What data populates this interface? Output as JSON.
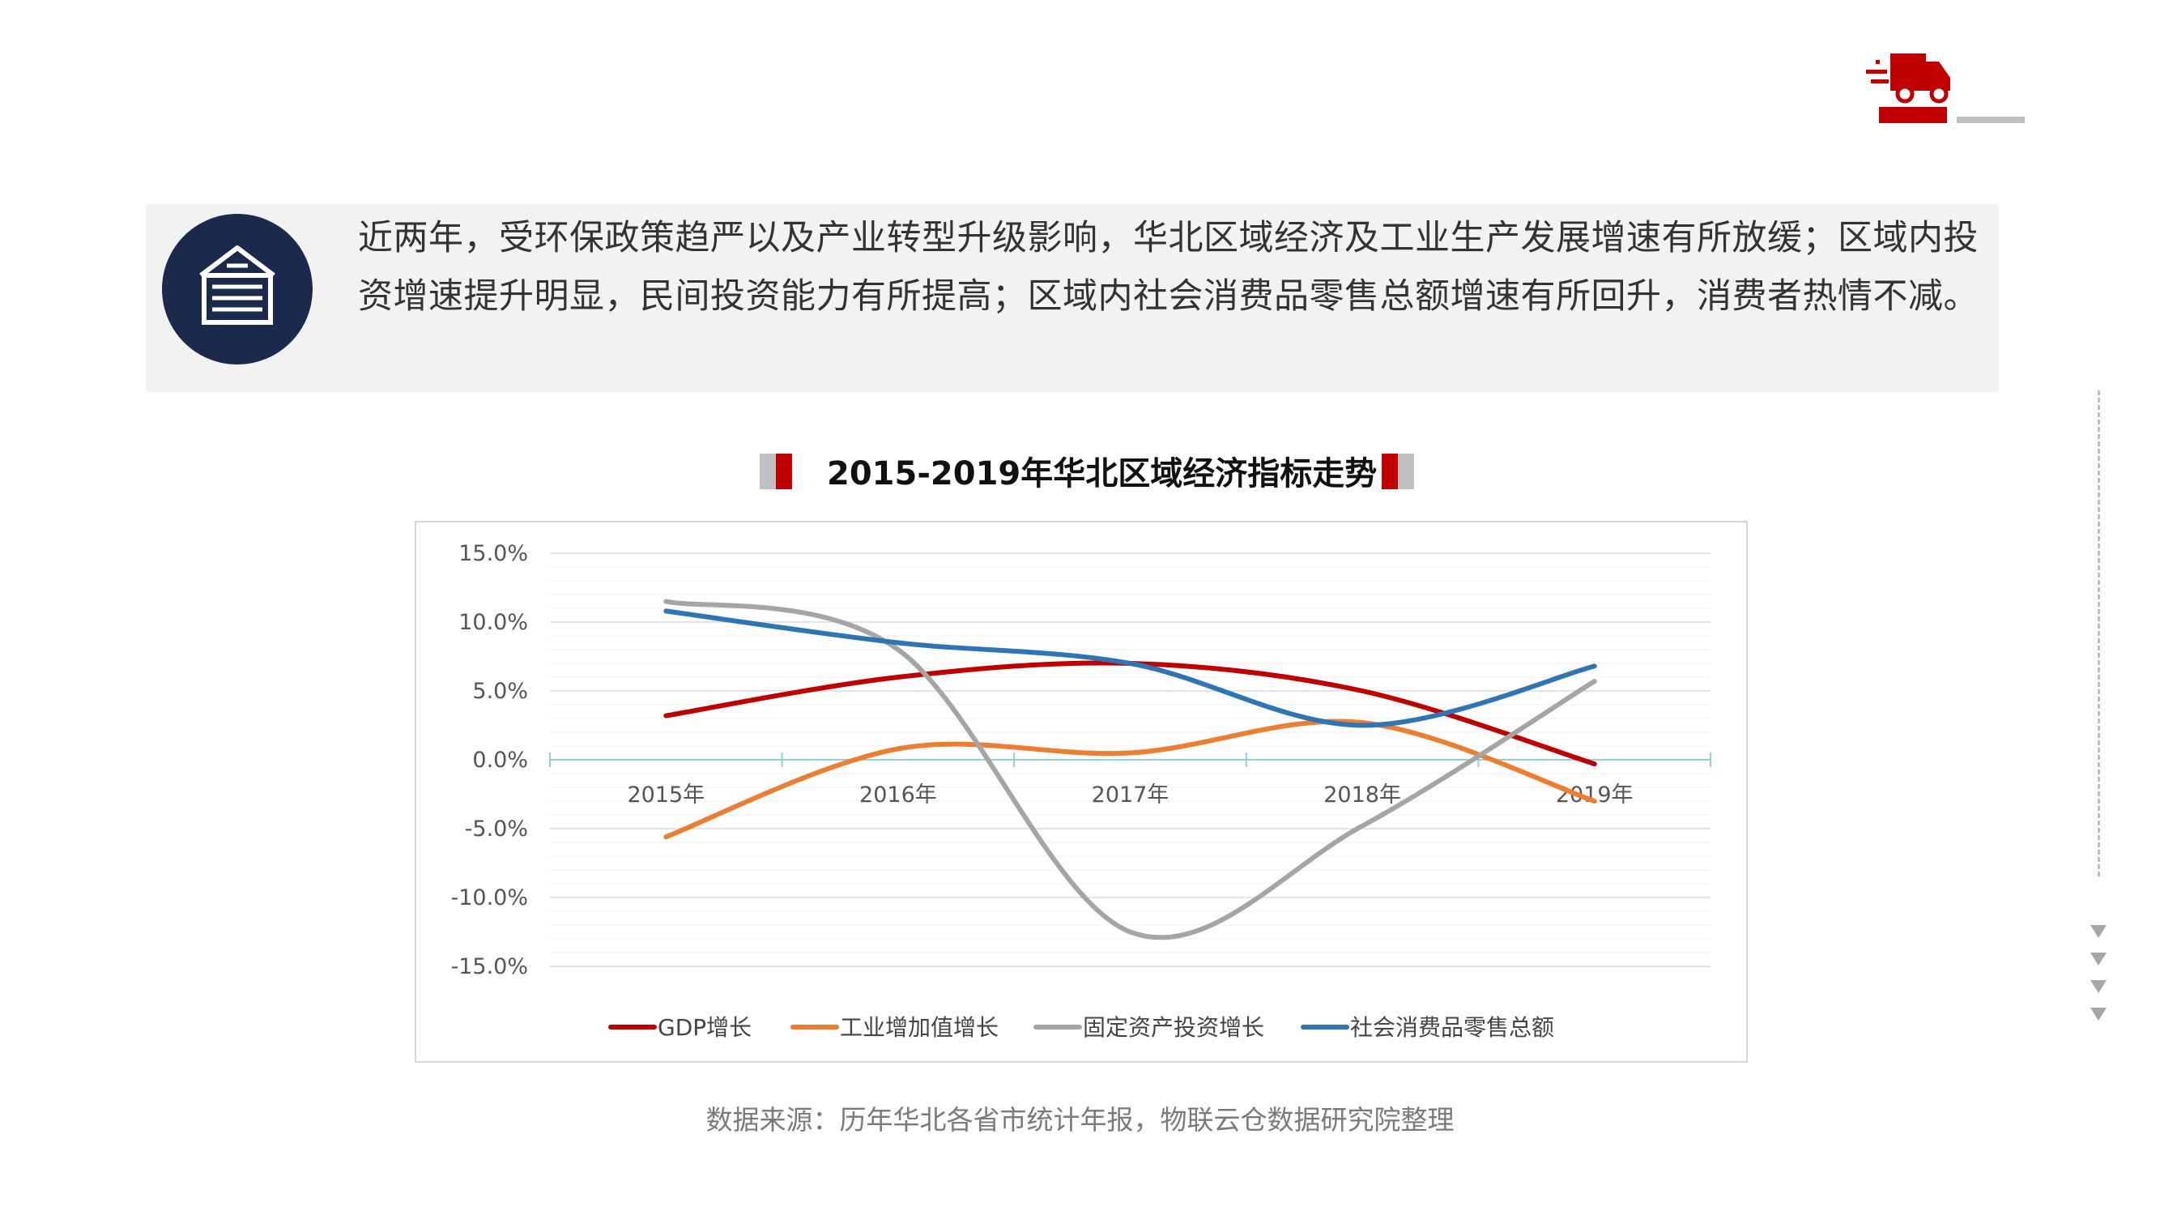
{
  "summary": {
    "text": "近两年，受环保政策趋严以及产业转型升级影响，华北区域经济及工业生产发展增速有所放缓；区域内投资增速提升明显，民间投资能力有所提高；区域内社会消费品零售总额增速有所回升，消费者热情不减。",
    "icon": "warehouse-icon"
  },
  "logo": {
    "icon": "delivery-truck-icon",
    "color": "#c00000"
  },
  "chart_data": {
    "type": "line",
    "title": "2015-2019年华北区域经济指标走势",
    "categories": [
      "2015年",
      "2016年",
      "2017年",
      "2018年",
      "2019年"
    ],
    "y_ticks": [
      "15.0%",
      "10.0%",
      "5.0%",
      "0.0%",
      "-5.0%",
      "-10.0%",
      "-15.0%"
    ],
    "ylim": [
      -15,
      15
    ],
    "smooth": true,
    "legend_position": "bottom",
    "series": [
      {
        "name": "GDP增长",
        "color": "#c00000",
        "values": [
          3.2,
          6.0,
          7.0,
          5.0,
          -0.3
        ]
      },
      {
        "name": "工业增加值增长",
        "color": "#ed7d31",
        "values": [
          -5.6,
          0.8,
          0.5,
          2.7,
          -3.0
        ]
      },
      {
        "name": "固定资产投资增长",
        "color": "#a5a5a5",
        "values": [
          11.5,
          8.0,
          -12.5,
          -4.8,
          5.7
        ]
      },
      {
        "name": "社会消费品零售总额",
        "color": "#2e75b6",
        "values": [
          10.8,
          8.5,
          7.0,
          2.5,
          6.8
        ]
      }
    ]
  },
  "source": "数据来源：历年华北各省市统计年报，物联云仓数据研究院整理"
}
